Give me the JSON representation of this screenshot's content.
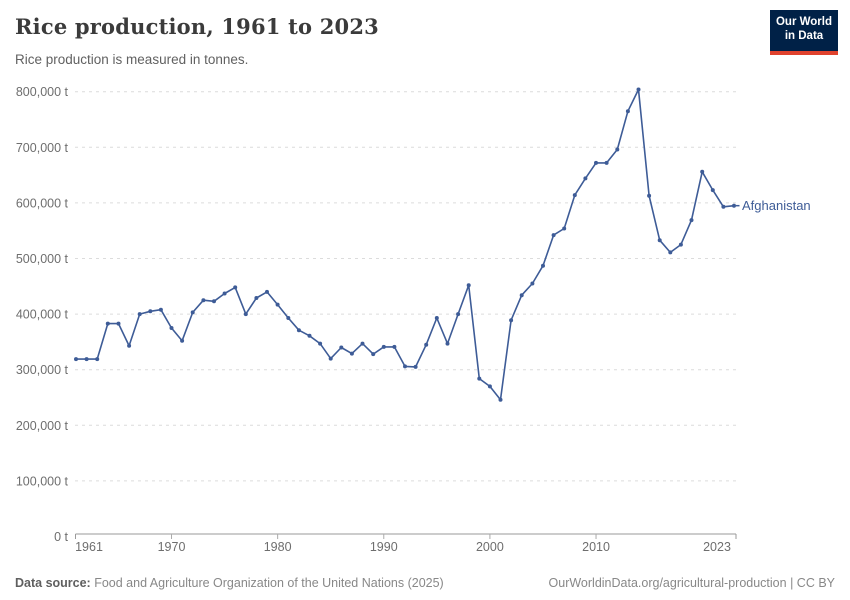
{
  "header": {
    "title": "Rice production, 1961 to 2023",
    "subtitle": "Rice production is measured in tonnes.",
    "logo_line1": "Our World",
    "logo_line2": "in Data",
    "logo_bg": "#002147",
    "logo_accent": "#e0422d"
  },
  "chart_data": {
    "type": "line",
    "title": "Rice production, 1961 to 2023",
    "unit": "tonnes",
    "grid": "horizontal-dashed",
    "legend_position": "end-of-line-label",
    "ylim": [
      0,
      800000
    ],
    "ytick_step": 100000,
    "ytick_labels": [
      "0 t",
      "100,000 t",
      "200,000 t",
      "300,000 t",
      "400,000 t",
      "500,000 t",
      "600,000 t",
      "700,000 t",
      "800,000 t"
    ],
    "xticks": [
      {
        "year": 1961,
        "label": "1961"
      },
      {
        "year": 1970,
        "label": "1970"
      },
      {
        "year": 1980,
        "label": "1980"
      },
      {
        "year": 1990,
        "label": "1990"
      },
      {
        "year": 2000,
        "label": "2000"
      },
      {
        "year": 2010,
        "label": "2010"
      },
      {
        "year": 2023,
        "label": "2023"
      }
    ],
    "series": [
      {
        "name": "Afghanistan",
        "color": "#3e5c97",
        "x": [
          1961,
          1962,
          1963,
          1964,
          1965,
          1966,
          1967,
          1968,
          1969,
          1970,
          1971,
          1972,
          1973,
          1974,
          1975,
          1976,
          1977,
          1978,
          1979,
          1980,
          1981,
          1982,
          1983,
          1984,
          1985,
          1986,
          1987,
          1988,
          1989,
          1990,
          1991,
          1992,
          1993,
          1994,
          1995,
          1996,
          1997,
          1998,
          1999,
          2000,
          2001,
          2002,
          2003,
          2004,
          2005,
          2006,
          2007,
          2008,
          2009,
          2010,
          2011,
          2012,
          2013,
          2014,
          2015,
          2016,
          2017,
          2018,
          2019,
          2020,
          2021,
          2022,
          2023
        ],
        "values": [
          319000,
          319000,
          319000,
          383000,
          383000,
          343000,
          400000,
          405000,
          408000,
          375000,
          352000,
          403000,
          425000,
          423000,
          437000,
          448000,
          400000,
          429000,
          440000,
          417000,
          393000,
          371000,
          361000,
          347000,
          320000,
          340000,
          329000,
          347000,
          328000,
          341000,
          341000,
          306000,
          305000,
          345000,
          393000,
          347000,
          400000,
          452000,
          284000,
          270000,
          246000,
          389000,
          434000,
          455000,
          487000,
          542000,
          554000,
          614000,
          644000,
          672000,
          672000,
          696000,
          765000,
          804000,
          613000,
          533000,
          511000,
          525000,
          569000,
          656000,
          623000,
          593000,
          595000
        ]
      }
    ]
  },
  "footer": {
    "source_label": "Data source:",
    "source_text": " Food and Agriculture Organization of the United Nations (2025)",
    "link": "OurWorldinData.org/agricultural-production",
    "separator": " | ",
    "license": "CC BY"
  }
}
